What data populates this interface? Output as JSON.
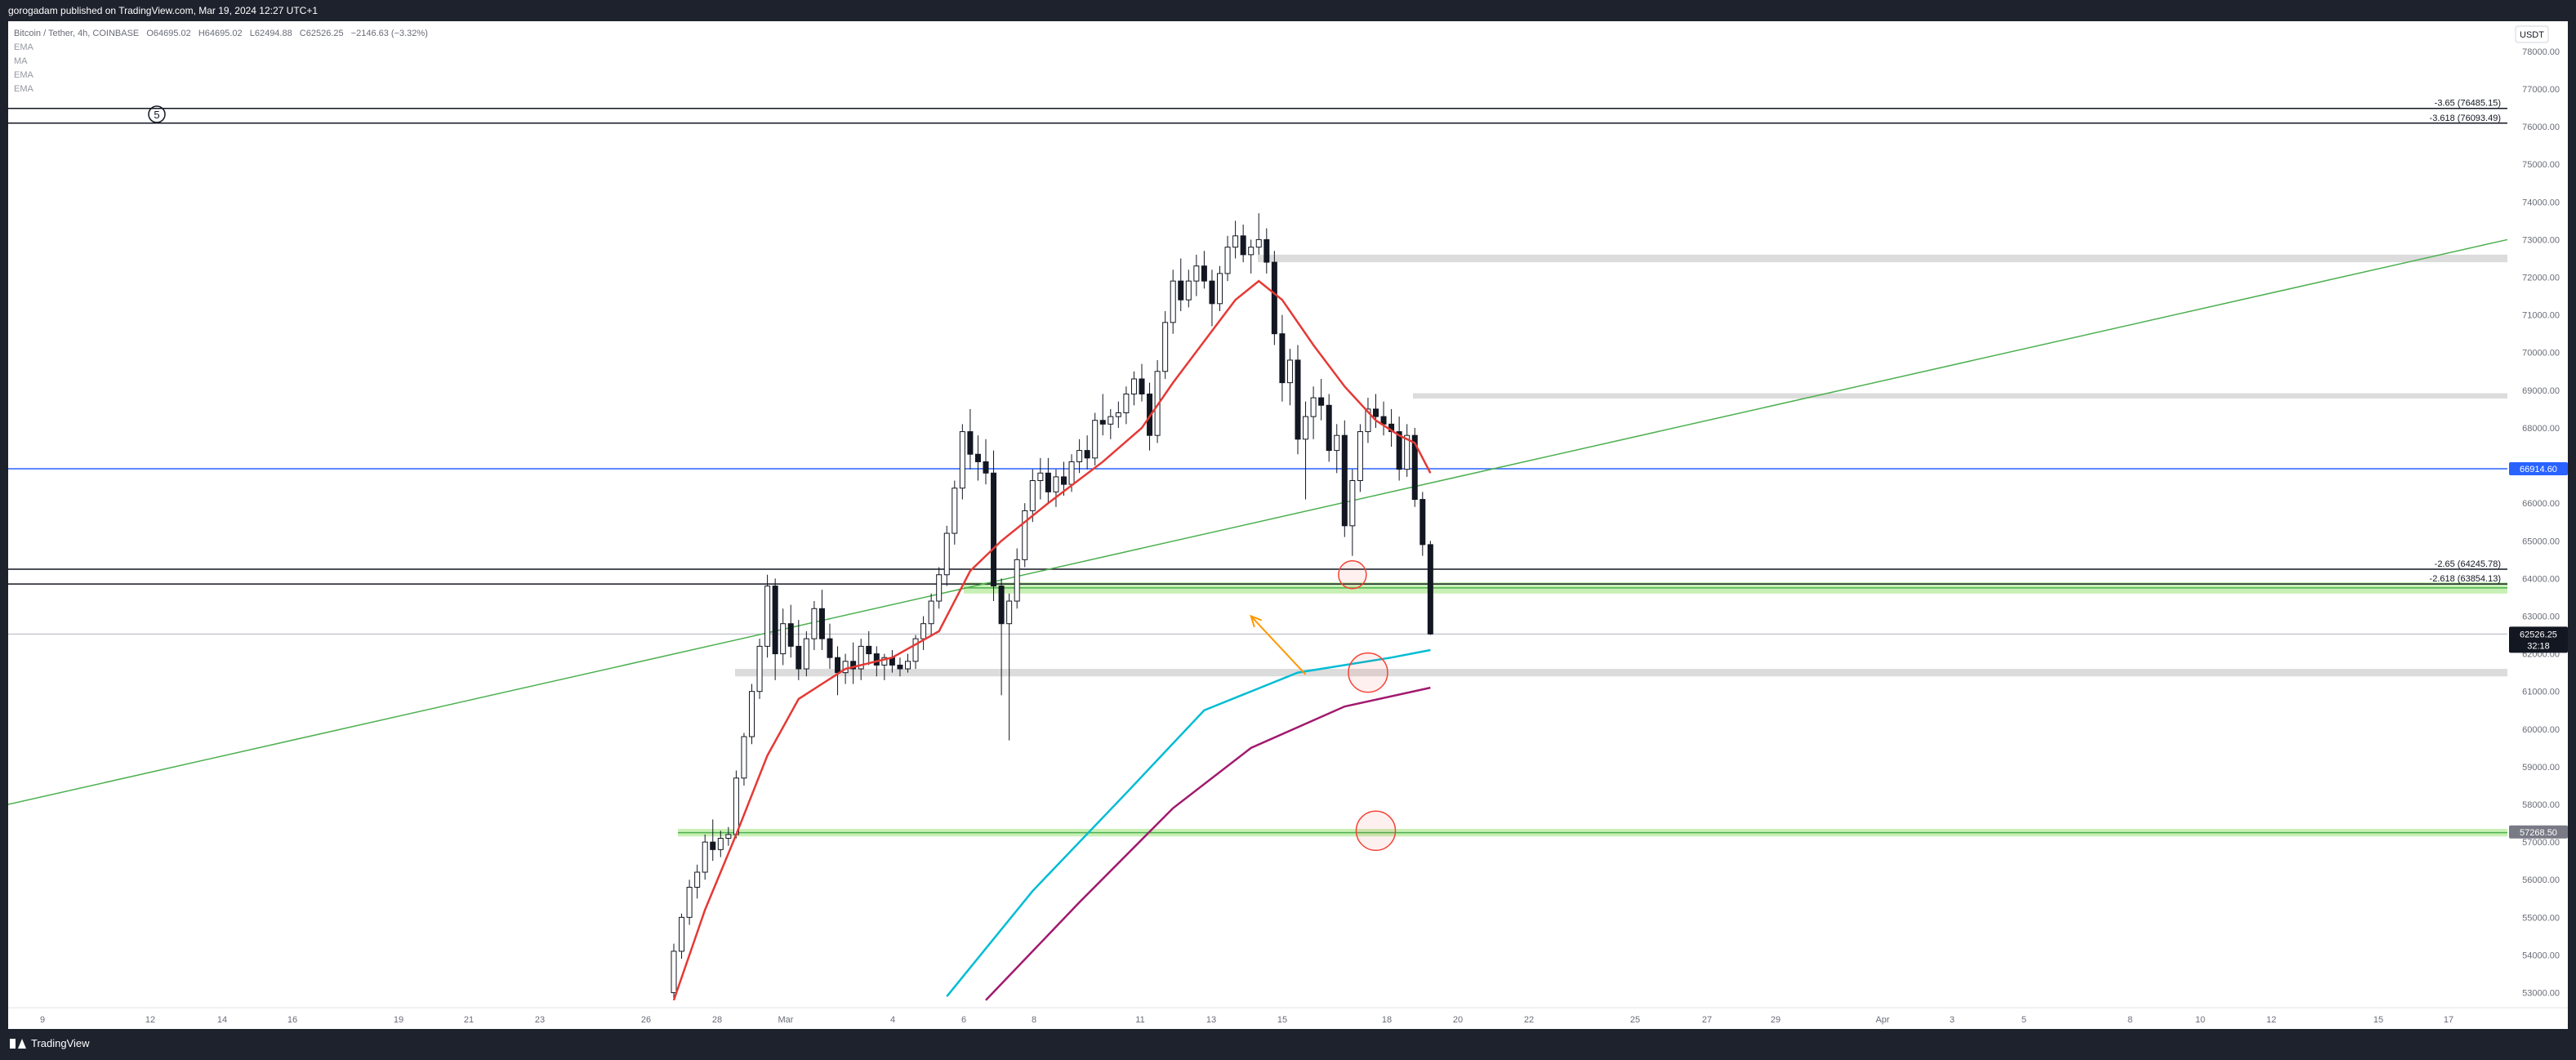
{
  "header": {
    "published": "gorogadam published on TradingView.com, Mar 19, 2024 12:27 UTC+1"
  },
  "legend": {
    "symbol": "Bitcoin / Tether, 4h, COINBASE",
    "open": "O64695.02",
    "high": "H64695.02",
    "low": "L62494.88",
    "close": "C62526.25",
    "change": "−2146.63 (−3.32%)",
    "indicators": [
      "EMA",
      "MA",
      "EMA",
      "EMA"
    ]
  },
  "currency": "USDT",
  "wave_label": "5",
  "footer": {
    "brand": "TradingView"
  },
  "colors": {
    "green_line": "#4caf50",
    "blue_line": "#2962ff",
    "ema_red": "#e53935",
    "ema_cyan": "#00bcd4",
    "ema_magenta": "#a1196e",
    "zone_green": "#c8f0b4",
    "zone_gray": "#dcdcdc",
    "circle": "#f44336",
    "arrow": "#ff9800"
  },
  "chart_data": {
    "type": "candlestick",
    "symbol": "Bitcoin / Tether",
    "interval": "4h",
    "exchange": "COINBASE",
    "ylim": [
      52600,
      78800
    ],
    "y_ticks": [
      53000,
      54000,
      55000,
      56000,
      57000,
      58000,
      59000,
      60000,
      61000,
      62000,
      63000,
      64000,
      65000,
      66000,
      67000,
      68000,
      69000,
      70000,
      71000,
      72000,
      73000,
      74000,
      75000,
      76000,
      77000,
      78000
    ],
    "x_tick_labels": [
      "9",
      "12",
      "14",
      "16",
      "19",
      "21",
      "23",
      "26",
      "28",
      "Mar",
      "4",
      "6",
      "8",
      "11",
      "13",
      "15",
      "18",
      "20",
      "22",
      "25",
      "27",
      "29",
      "Apr",
      "3",
      "5",
      "8",
      "10",
      "12",
      "15",
      "17"
    ],
    "last_price": "62526.25",
    "countdown": "32:18",
    "price_labels": [
      {
        "price": 66914.6,
        "text": "66914.60",
        "color": "#2962ff"
      },
      {
        "price": 57268.5,
        "text": "57268.50",
        "color": "#787b86"
      }
    ],
    "fib_levels": [
      {
        "label": "-3.65 (76485.15)",
        "price": 76485.15
      },
      {
        "label": "-3.618 (76093.49)",
        "price": 76093.49
      },
      {
        "label": "-2.65 (64245.78)",
        "price": 64245.78
      },
      {
        "label": "-2.618 (63854.13)",
        "price": 63854.13
      }
    ],
    "horizontal_levels": [
      {
        "price": 66914.6,
        "color": "blue"
      },
      {
        "price": 62526.25,
        "color": "gray"
      }
    ],
    "zones": [
      {
        "from": 63600,
        "to": 63900,
        "color": "green"
      },
      {
        "from": 57150,
        "to": 57350,
        "color": "green"
      },
      {
        "from": 72400,
        "to": 72600,
        "color": "gray"
      },
      {
        "from": 68780,
        "to": 68920,
        "color": "gray"
      },
      {
        "from": 61400,
        "to": 61600,
        "color": "gray"
      }
    ],
    "trendline": {
      "start": [
        "Feb 4",
        58000
      ],
      "end": [
        "Apr 18",
        73000
      ]
    },
    "candles": {
      "note": "approximate 4h OHLC, Feb 27 – Mar 19, 2024",
      "ohlc": [
        [
          53000,
          54300,
          52800,
          54100
        ],
        [
          54100,
          55100,
          53900,
          55000
        ],
        [
          55000,
          56000,
          54800,
          55800
        ],
        [
          55800,
          56400,
          55500,
          56200
        ],
        [
          56200,
          57200,
          56000,
          57000
        ],
        [
          57000,
          57600,
          56500,
          56800
        ],
        [
          56800,
          57300,
          56600,
          57100
        ],
        [
          57100,
          57400,
          56900,
          57200
        ],
        [
          57200,
          58900,
          57100,
          58700
        ],
        [
          58700,
          59900,
          58500,
          59800
        ],
        [
          59800,
          61200,
          59600,
          61000
        ],
        [
          61000,
          62400,
          60800,
          62200
        ],
        [
          62200,
          64100,
          61900,
          63800
        ],
        [
          63800,
          64000,
          61300,
          62000
        ],
        [
          62000,
          63200,
          61700,
          62800
        ],
        [
          62800,
          63300,
          61900,
          62200
        ],
        [
          62200,
          62900,
          61300,
          61600
        ],
        [
          61600,
          62600,
          61400,
          62400
        ],
        [
          62400,
          63400,
          62100,
          63200
        ],
        [
          63200,
          63700,
          62100,
          62400
        ],
        [
          62400,
          62800,
          61600,
          61900
        ],
        [
          61900,
          62200,
          60900,
          61500
        ],
        [
          61500,
          62000,
          61200,
          61800
        ],
        [
          61800,
          62300,
          61200,
          61600
        ],
        [
          61600,
          62400,
          61300,
          62200
        ],
        [
          62200,
          62600,
          61700,
          62000
        ],
        [
          62000,
          62200,
          61400,
          61700
        ],
        [
          61700,
          62000,
          61300,
          61900
        ],
        [
          61900,
          62100,
          61500,
          61700
        ],
        [
          61700,
          61900,
          61400,
          61600
        ],
        [
          61600,
          62000,
          61500,
          61800
        ],
        [
          61800,
          62500,
          61600,
          62400
        ],
        [
          62400,
          63000,
          62100,
          62800
        ],
        [
          62800,
          63600,
          62500,
          63400
        ],
        [
          63400,
          64300,
          63200,
          64100
        ],
        [
          64100,
          65400,
          63800,
          65200
        ],
        [
          65200,
          66600,
          64900,
          66400
        ],
        [
          66400,
          68100,
          66100,
          67900
        ],
        [
          67900,
          68500,
          66900,
          67300
        ],
        [
          67300,
          67800,
          66600,
          67100
        ],
        [
          67100,
          67700,
          66500,
          66800
        ],
        [
          66800,
          67400,
          63400,
          63800
        ],
        [
          63800,
          64000,
          60900,
          62800
        ],
        [
          62800,
          63600,
          59700,
          63400
        ],
        [
          63400,
          64800,
          63200,
          64500
        ],
        [
          64500,
          66000,
          64300,
          65800
        ],
        [
          65800,
          66900,
          65500,
          66600
        ],
        [
          66600,
          67200,
          66100,
          66800
        ],
        [
          66800,
          67200,
          66000,
          66300
        ],
        [
          66300,
          66900,
          65900,
          66700
        ],
        [
          66700,
          67100,
          66200,
          66500
        ],
        [
          66500,
          67300,
          66300,
          67100
        ],
        [
          67100,
          67700,
          66800,
          67400
        ],
        [
          67400,
          67800,
          66900,
          67200
        ],
        [
          67200,
          68400,
          67000,
          68200
        ],
        [
          68200,
          68900,
          67800,
          68100
        ],
        [
          68100,
          68500,
          67700,
          68300
        ],
        [
          68300,
          68700,
          68000,
          68400
        ],
        [
          68400,
          69100,
          68100,
          68900
        ],
        [
          68900,
          69500,
          68600,
          69300
        ],
        [
          69300,
          69700,
          68700,
          68900
        ],
        [
          68900,
          69200,
          67400,
          67800
        ],
        [
          67800,
          69800,
          67600,
          69500
        ],
        [
          69500,
          71100,
          69300,
          70800
        ],
        [
          70800,
          72200,
          70500,
          71900
        ],
        [
          71900,
          72500,
          71100,
          71400
        ],
        [
          71400,
          72200,
          71200,
          71900
        ],
        [
          71900,
          72600,
          71500,
          72300
        ],
        [
          72300,
          72700,
          71700,
          71900
        ],
        [
          71900,
          72200,
          70700,
          71300
        ],
        [
          71300,
          72300,
          71100,
          72100
        ],
        [
          72100,
          73100,
          71900,
          72800
        ],
        [
          72800,
          73500,
          72500,
          73100
        ],
        [
          73100,
          73400,
          72400,
          72600
        ],
        [
          72600,
          73000,
          72100,
          72800
        ],
        [
          72800,
          73700,
          72600,
          73000
        ],
        [
          73000,
          73300,
          72100,
          72400
        ],
        [
          72400,
          72700,
          70200,
          70500
        ],
        [
          70500,
          71000,
          68700,
          69200
        ],
        [
          69200,
          70100,
          68600,
          69800
        ],
        [
          69800,
          70200,
          67300,
          67700
        ],
        [
          67700,
          68700,
          66100,
          68300
        ],
        [
          68300,
          69100,
          67700,
          68800
        ],
        [
          68800,
          69300,
          68200,
          68600
        ],
        [
          68600,
          68900,
          67100,
          67400
        ],
        [
          67400,
          68100,
          66800,
          67800
        ],
        [
          67800,
          68200,
          65100,
          65400
        ],
        [
          65400,
          66900,
          64600,
          66600
        ],
        [
          66600,
          68100,
          66300,
          67900
        ],
        [
          67900,
          68800,
          67600,
          68500
        ],
        [
          68500,
          68900,
          68000,
          68300
        ],
        [
          68300,
          68700,
          67800,
          68100
        ],
        [
          68100,
          68500,
          67500,
          67900
        ],
        [
          67900,
          68300,
          66600,
          66900
        ],
        [
          66900,
          68100,
          66700,
          67800
        ],
        [
          67800,
          68000,
          65900,
          66100
        ],
        [
          66100,
          66300,
          64600,
          64900
        ],
        [
          64900,
          65000,
          62500,
          62526.25
        ]
      ]
    },
    "ema_series": [
      {
        "color": "red",
        "points": [
          [
            0,
            52800
          ],
          [
            4,
            55200
          ],
          [
            8,
            57200
          ],
          [
            12,
            59300
          ],
          [
            16,
            60800
          ],
          [
            22,
            61600
          ],
          [
            28,
            61900
          ],
          [
            34,
            62600
          ],
          [
            38,
            64200
          ],
          [
            42,
            65000
          ],
          [
            48,
            66000
          ],
          [
            55,
            67100
          ],
          [
            60,
            68000
          ],
          [
            64,
            69200
          ],
          [
            68,
            70300
          ],
          [
            72,
            71400
          ],
          [
            75,
            71900
          ],
          [
            78,
            71400
          ],
          [
            82,
            70200
          ],
          [
            86,
            69100
          ],
          [
            90,
            68200
          ],
          [
            93,
            67800
          ],
          [
            95,
            67600
          ],
          [
            97,
            66800
          ]
        ]
      },
      {
        "color": "cyan",
        "points": [
          [
            35,
            52900
          ],
          [
            46,
            55700
          ],
          [
            58,
            58300
          ],
          [
            68,
            60500
          ],
          [
            80,
            61500
          ],
          [
            92,
            61900
          ],
          [
            97,
            62100
          ]
        ]
      },
      {
        "color": "magenta",
        "points": [
          [
            40,
            52800
          ],
          [
            52,
            55400
          ],
          [
            64,
            57900
          ],
          [
            74,
            59500
          ],
          [
            86,
            60600
          ],
          [
            97,
            61100
          ]
        ]
      }
    ],
    "circles": [
      {
        "x_index": 87,
        "price": 64100
      },
      {
        "x_index": 89,
        "price": 61500
      },
      {
        "x_index": 90,
        "price": 57300
      }
    ],
    "arrow": {
      "from": [
        81,
        61450
      ],
      "to": [
        74,
        63000
      ]
    }
  }
}
